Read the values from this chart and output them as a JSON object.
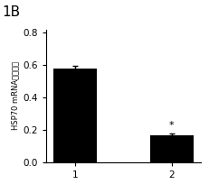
{
  "categories": [
    "1",
    "2"
  ],
  "values": [
    0.578,
    0.163
  ],
  "errors": [
    0.018,
    0.012
  ],
  "bar_color": "#000000",
  "bar_width": 0.45,
  "ylabel": "HSP70 mRNA的相对扩",
  "ylim": [
    0.0,
    0.82
  ],
  "yticks": [
    0.0,
    0.2,
    0.4,
    0.6,
    0.8
  ],
  "title_label": "1B",
  "title_fontsize": 11,
  "ylabel_fontsize": 6.0,
  "tick_fontsize": 7.5,
  "asterisk_text": "*",
  "asterisk_bar_index": 1,
  "background_color": "#ffffff",
  "error_capsize": 2.5,
  "error_linewidth": 1.0
}
